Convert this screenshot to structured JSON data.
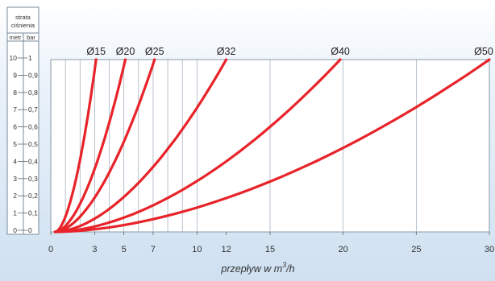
{
  "chart_data": {
    "type": "line",
    "y_axis_title": [
      "strata",
      "ciśnienia"
    ],
    "y_units": [
      "metr",
      "bar"
    ],
    "y_meters_ticks": [
      "0",
      "1",
      "2",
      "3",
      "4",
      "5",
      "6",
      "7",
      "8",
      "9",
      "10"
    ],
    "y_bar_ticks": [
      "0",
      "0,1",
      "0,2",
      "0,3",
      "0,4",
      "0,5",
      "0,6",
      "0,7",
      "0,8",
      "0,9",
      "1"
    ],
    "ylim": [
      0,
      1
    ],
    "xlim": [
      0,
      30
    ],
    "x_ticks": [
      {
        "value": 0,
        "label": "0"
      },
      {
        "value": 3,
        "label": "3"
      },
      {
        "value": 5,
        "label": "5"
      },
      {
        "value": 7,
        "label": "7"
      },
      {
        "value": 10,
        "label": "10"
      },
      {
        "value": 12,
        "label": "12"
      },
      {
        "value": 15,
        "label": "15"
      },
      {
        "value": 20,
        "label": "20"
      },
      {
        "value": 25,
        "label": "25"
      },
      {
        "value": 30,
        "label": "30"
      }
    ],
    "xlabel_main": "przepływ w m",
    "xlabel_sup": "3",
    "xlabel_tail": "/h",
    "line_color": "#e8232a",
    "series": [
      {
        "name": "Ø15",
        "max_flow": 3.1
      },
      {
        "name": "Ø20",
        "max_flow": 5.1
      },
      {
        "name": "Ø25",
        "max_flow": 7.1
      },
      {
        "name": "Ø32",
        "max_flow": 12.0
      },
      {
        "name": "Ø40",
        "max_flow": 19.8
      },
      {
        "name": "Ø50",
        "max_flow": 30.0
      }
    ]
  }
}
